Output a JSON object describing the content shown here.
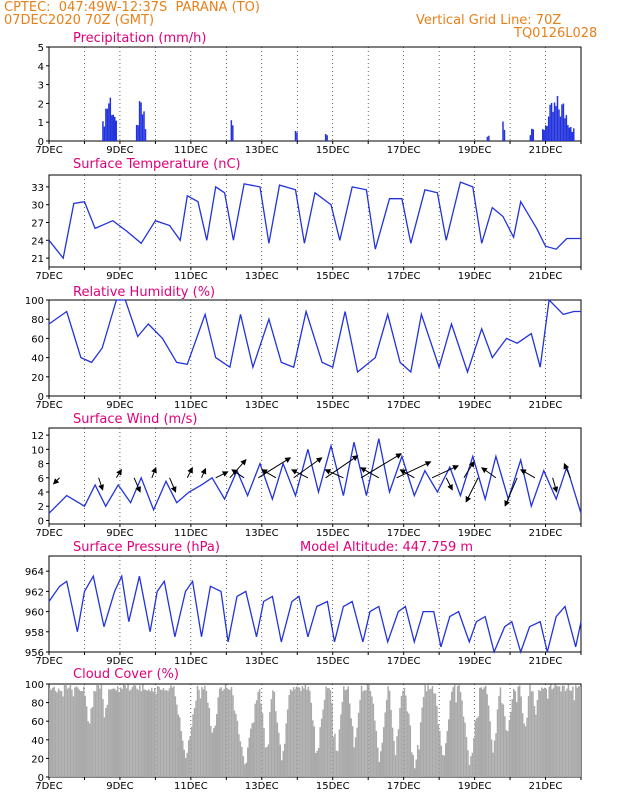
{
  "header": {
    "line1": "CPTEC:  047:49W-12:37S  PARANA (TO)",
    "line2": "07DEC2020 70Z (GMT)",
    "right1": "Vertical Grid Line: 70Z",
    "right2": "TQ0126L028",
    "model_altitude": "Model Altitude: 447.759 m"
  },
  "colors": {
    "header": "#e8801a",
    "title": "#e0007a",
    "series": "#2233dd",
    "cloud": "#a9a9a9",
    "grid": "#000000"
  },
  "chart_data": [
    {
      "type": "bar",
      "title": "Precipitation (mm/h)",
      "x_ticks": [
        "7DEC",
        "9DEC",
        "11DEC",
        "13DEC",
        "15DEC",
        "17DEC",
        "19DEC",
        "21DEC"
      ],
      "x_range_days": [
        7,
        22
      ],
      "ylim": [
        0,
        5
      ],
      "y_ticks": [
        0,
        1,
        2,
        3,
        4,
        5
      ],
      "events": [
        {
          "day": 8.5,
          "width": 0.42,
          "peak": 3.0
        },
        {
          "day": 9.45,
          "width": 0.3,
          "peak": 2.3
        },
        {
          "day": 12.12,
          "width": 0.1,
          "peak": 1.8
        },
        {
          "day": 13.93,
          "width": 0.05,
          "peak": 0.8
        },
        {
          "day": 14.78,
          "width": 0.06,
          "peak": 0.6
        },
        {
          "day": 19.34,
          "width": 0.06,
          "peak": 0.6
        },
        {
          "day": 19.78,
          "width": 0.06,
          "peak": 1.9
        },
        {
          "day": 20.55,
          "width": 0.12,
          "peak": 1.0
        },
        {
          "day": 20.9,
          "width": 0.9,
          "peak": 2.5
        }
      ]
    },
    {
      "type": "line",
      "title": "Surface Temperature (nC)",
      "x_ticks": [
        "7DEC",
        "9DEC",
        "11DEC",
        "13DEC",
        "15DEC",
        "17DEC",
        "19DEC",
        "21DEC"
      ],
      "x_range_days": [
        7,
        22
      ],
      "ylim": [
        19.5,
        35
      ],
      "y_ticks": [
        21,
        24,
        27,
        30,
        33
      ],
      "x": [
        7.0,
        7.4,
        7.7,
        8.0,
        8.3,
        8.8,
        9.2,
        9.6,
        10.0,
        10.4,
        10.7,
        10.9,
        11.2,
        11.45,
        11.7,
        11.95,
        12.2,
        12.5,
        12.95,
        13.2,
        13.5,
        13.95,
        14.2,
        14.5,
        14.95,
        15.2,
        15.55,
        15.95,
        16.2,
        16.6,
        16.95,
        17.2,
        17.6,
        17.95,
        18.2,
        18.6,
        18.95,
        19.2,
        19.5,
        19.8,
        20.1,
        20.3,
        20.5,
        20.75,
        21.0,
        21.3,
        21.6,
        22.0
      ],
      "y": [
        24.0,
        21.0,
        30.2,
        30.5,
        26.0,
        27.3,
        25.5,
        23.5,
        27.3,
        26.5,
        24.0,
        31.5,
        30.5,
        24.0,
        33.0,
        32.0,
        24.0,
        33.5,
        33.0,
        23.5,
        33.3,
        32.5,
        23.5,
        32.0,
        30.0,
        24.0,
        33.0,
        32.5,
        22.5,
        31.0,
        31.0,
        23.5,
        32.5,
        32.0,
        24.0,
        33.8,
        33.0,
        23.5,
        29.5,
        28.0,
        24.5,
        30.5,
        28.5,
        26.0,
        23.0,
        22.5,
        24.3,
        24.3
      ]
    },
    {
      "type": "line",
      "title": "Relative Humidity (%)",
      "x_ticks": [
        "7DEC",
        "9DEC",
        "11DEC",
        "13DEC",
        "15DEC",
        "17DEC",
        "19DEC",
        "21DEC"
      ],
      "x_range_days": [
        7,
        22
      ],
      "ylim": [
        0,
        100
      ],
      "y_ticks": [
        0,
        20,
        40,
        60,
        80,
        100
      ],
      "x": [
        7.0,
        7.5,
        7.9,
        8.2,
        8.5,
        8.9,
        9.15,
        9.5,
        9.8,
        10.2,
        10.6,
        10.9,
        11.4,
        11.7,
        12.1,
        12.4,
        12.75,
        13.2,
        13.55,
        13.9,
        14.25,
        14.7,
        15.0,
        15.35,
        15.7,
        16.2,
        16.55,
        16.9,
        17.2,
        17.5,
        18.0,
        18.35,
        18.8,
        19.2,
        19.5,
        19.9,
        20.2,
        20.6,
        20.85,
        21.1,
        21.5,
        21.8,
        22.0
      ],
      "y": [
        75,
        88,
        40,
        35,
        50,
        100,
        100,
        62,
        75,
        60,
        35,
        33,
        85,
        40,
        30,
        85,
        30,
        80,
        35,
        30,
        88,
        35,
        30,
        88,
        25,
        40,
        85,
        35,
        25,
        85,
        30,
        75,
        25,
        70,
        40,
        60,
        55,
        65,
        30,
        100,
        85,
        88,
        88
      ]
    },
    {
      "type": "line",
      "title": "Surface Wind (m/s)",
      "x_ticks": [
        "7DEC",
        "9DEC",
        "11DEC",
        "13DEC",
        "15DEC",
        "17DEC",
        "19DEC",
        "21DEC"
      ],
      "x_range_days": [
        7,
        22
      ],
      "ylim": [
        -0.5,
        13
      ],
      "y_ticks": [
        0,
        2,
        4,
        6,
        8,
        10,
        12
      ],
      "x": [
        7.0,
        7.5,
        8.0,
        8.3,
        8.6,
        8.95,
        9.3,
        9.6,
        9.95,
        10.3,
        10.6,
        10.95,
        11.3,
        11.6,
        11.95,
        12.3,
        12.6,
        12.95,
        13.3,
        13.6,
        13.95,
        14.3,
        14.6,
        14.95,
        15.3,
        15.6,
        15.95,
        16.3,
        16.6,
        16.95,
        17.3,
        17.6,
        17.95,
        18.3,
        18.6,
        18.95,
        19.3,
        19.6,
        19.95,
        20.3,
        20.6,
        20.95,
        21.3,
        21.6,
        22.0
      ],
      "y": [
        1.0,
        3.5,
        2.0,
        5.0,
        2.0,
        5.0,
        2.5,
        6.0,
        1.5,
        5.5,
        2.5,
        4.0,
        5.0,
        6.0,
        3.0,
        7.0,
        3.5,
        8.0,
        3.0,
        8.0,
        3.5,
        10.0,
        4.0,
        10.5,
        3.5,
        11.0,
        3.5,
        11.5,
        4.0,
        9.0,
        3.5,
        7.0,
        4.0,
        7.5,
        3.5,
        9.0,
        3.0,
        9.0,
        3.0,
        8.5,
        2.0,
        7.0,
        3.0,
        7.5,
        1.0
      ],
      "arrows": [
        {
          "day": 7.3,
          "dx": -6,
          "dy": 6
        },
        {
          "day": 8.4,
          "dx": 4,
          "dy": 12
        },
        {
          "day": 8.9,
          "dx": 5,
          "dy": -8
        },
        {
          "day": 9.4,
          "dx": 6,
          "dy": 14
        },
        {
          "day": 9.9,
          "dx": 4,
          "dy": -10
        },
        {
          "day": 10.4,
          "dx": 6,
          "dy": 14
        },
        {
          "day": 10.9,
          "dx": 5,
          "dy": -10
        },
        {
          "day": 11.3,
          "dx": 4,
          "dy": -9
        },
        {
          "day": 11.7,
          "dx": 12,
          "dy": -6
        },
        {
          "day": 12.1,
          "dx": 16,
          "dy": -18
        },
        {
          "day": 12.5,
          "dx": -12,
          "dy": -8
        },
        {
          "day": 12.9,
          "dx": 32,
          "dy": -20
        },
        {
          "day": 13.4,
          "dx": -14,
          "dy": -8
        },
        {
          "day": 13.9,
          "dx": 28,
          "dy": -20
        },
        {
          "day": 14.3,
          "dx": -16,
          "dy": -8
        },
        {
          "day": 14.8,
          "dx": 32,
          "dy": -22
        },
        {
          "day": 15.3,
          "dx": -18,
          "dy": -8
        },
        {
          "day": 15.8,
          "dx": 40,
          "dy": -24
        },
        {
          "day": 16.3,
          "dx": -18,
          "dy": -10
        },
        {
          "day": 16.8,
          "dx": 34,
          "dy": -16
        },
        {
          "day": 17.3,
          "dx": -14,
          "dy": -8
        },
        {
          "day": 17.8,
          "dx": 26,
          "dy": -12
        },
        {
          "day": 18.2,
          "dx": 6,
          "dy": 12
        },
        {
          "day": 18.7,
          "dx": 10,
          "dy": -16
        },
        {
          "day": 19.1,
          "dx": -12,
          "dy": 24
        },
        {
          "day": 19.6,
          "dx": -14,
          "dy": -10
        },
        {
          "day": 20.2,
          "dx": -12,
          "dy": 28
        },
        {
          "day": 20.7,
          "dx": -14,
          "dy": -8
        },
        {
          "day": 21.2,
          "dx": 4,
          "dy": 14
        },
        {
          "day": 21.7,
          "dx": -6,
          "dy": -14
        }
      ]
    },
    {
      "type": "line",
      "title": "Surface Pressure (hPa)",
      "x_ticks": [
        "7DEC",
        "9DEC",
        "11DEC",
        "13DEC",
        "15DEC",
        "17DEC",
        "19DEC",
        "21DEC"
      ],
      "x_range_days": [
        7,
        22
      ],
      "ylim": [
        956,
        965.5
      ],
      "y_ticks": [
        956,
        958,
        960,
        962,
        964
      ],
      "x": [
        7.0,
        7.3,
        7.5,
        7.8,
        8.0,
        8.25,
        8.55,
        8.85,
        9.05,
        9.25,
        9.55,
        9.85,
        10.05,
        10.25,
        10.55,
        10.85,
        11.05,
        11.3,
        11.55,
        11.85,
        12.05,
        12.3,
        12.55,
        12.85,
        13.05,
        13.3,
        13.55,
        13.85,
        14.05,
        14.3,
        14.55,
        14.85,
        15.05,
        15.3,
        15.55,
        15.85,
        16.05,
        16.3,
        16.55,
        16.85,
        17.05,
        17.3,
        17.55,
        17.85,
        18.05,
        18.3,
        18.55,
        18.85,
        19.05,
        19.3,
        19.55,
        19.85,
        20.05,
        20.3,
        20.55,
        20.85,
        21.05,
        21.3,
        21.55,
        21.85,
        22.0
      ],
      "y": [
        961,
        962.5,
        963,
        958,
        962,
        963.5,
        958.5,
        962,
        963.5,
        959,
        963.5,
        958,
        962,
        963,
        957.5,
        962,
        963,
        957.5,
        962.5,
        962,
        957,
        961.5,
        962,
        957.5,
        961,
        961.5,
        957,
        961,
        961.5,
        957.5,
        960.5,
        961,
        957,
        960.5,
        961,
        957,
        960,
        960.5,
        957,
        960,
        960.5,
        957,
        960,
        960,
        956.5,
        959.5,
        960,
        957,
        959,
        959.5,
        956,
        958.5,
        959,
        956,
        958.5,
        959,
        956,
        959.5,
        960.5,
        956.5,
        959
      ]
    },
    {
      "type": "area",
      "title": "Cloud Cover (%)",
      "x_ticks": [
        "7DEC",
        "9DEC",
        "11DEC",
        "13DEC",
        "15DEC",
        "17DEC",
        "19DEC",
        "21DEC"
      ],
      "x_range_days": [
        7,
        22
      ],
      "ylim": [
        0,
        100
      ],
      "y_ticks": [
        0,
        20,
        40,
        60,
        80,
        100
      ],
      "dips": [
        {
          "day": 8.1,
          "width": 0.15,
          "low": 45
        },
        {
          "day": 8.55,
          "width": 0.1,
          "low": 60
        },
        {
          "day": 10.85,
          "width": 0.35,
          "low": 15
        },
        {
          "day": 11.6,
          "width": 0.2,
          "low": 35
        },
        {
          "day": 12.5,
          "width": 0.4,
          "low": 5
        },
        {
          "day": 13.1,
          "width": 0.2,
          "low": 20
        },
        {
          "day": 13.55,
          "width": 0.25,
          "low": 10
        },
        {
          "day": 14.55,
          "width": 0.25,
          "low": 20
        },
        {
          "day": 15.1,
          "width": 0.2,
          "low": 15
        },
        {
          "day": 15.6,
          "width": 0.2,
          "low": 25
        },
        {
          "day": 16.3,
          "width": 0.25,
          "low": 10
        },
        {
          "day": 16.75,
          "width": 0.2,
          "low": 20
        },
        {
          "day": 17.3,
          "width": 0.3,
          "low": 5
        },
        {
          "day": 18.1,
          "width": 0.25,
          "low": 10
        },
        {
          "day": 18.85,
          "width": 0.3,
          "low": 5
        },
        {
          "day": 19.5,
          "width": 0.2,
          "low": 20
        },
        {
          "day": 19.9,
          "width": 0.2,
          "low": 35
        },
        {
          "day": 20.4,
          "width": 0.15,
          "low": 40
        },
        {
          "day": 20.7,
          "width": 0.1,
          "low": 55
        }
      ]
    }
  ]
}
